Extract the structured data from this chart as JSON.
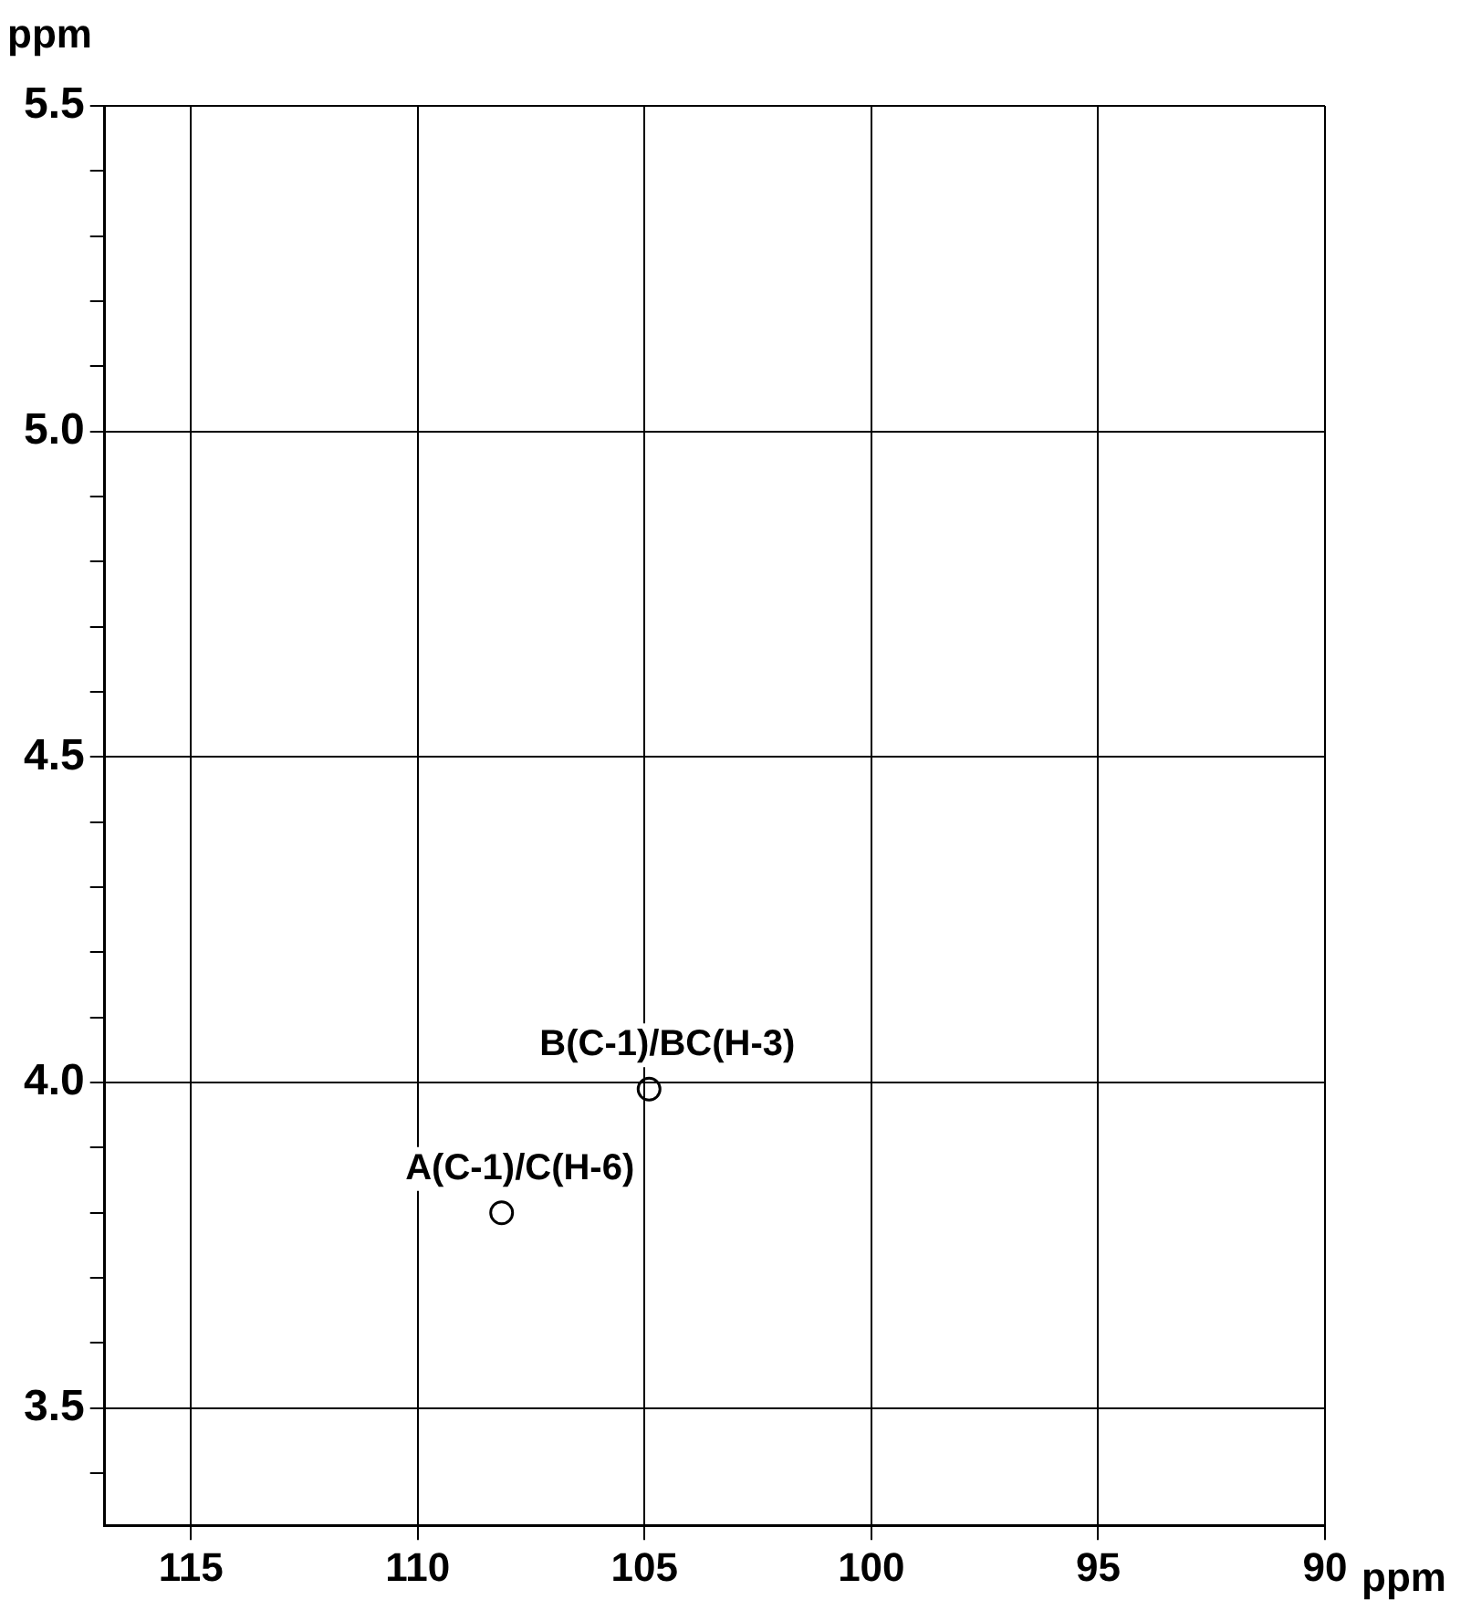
{
  "chart_data": {
    "type": "scatter",
    "xlabel": "ppm",
    "ylabel": "ppm",
    "x": [
      104.9,
      108.15
    ],
    "series": [
      {
        "color": "#000000",
        "values": [
          3.99,
          3.8
        ]
      }
    ],
    "xlim": [
      116.9,
      90
    ],
    "xticks": [
      115,
      110,
      105,
      100,
      95,
      90
    ],
    "ylim": [
      3.32,
      5.5
    ],
    "yticks": [
      {
        "value": 3.4,
        "label": null
      },
      {
        "value": 3.5,
        "label": "3.5"
      },
      {
        "value": 3.6,
        "label": null
      },
      {
        "value": 3.7,
        "label": null
      },
      {
        "value": 3.8,
        "label": null
      },
      {
        "value": 3.9,
        "label": null
      },
      {
        "value": 4,
        "label": "4.0"
      },
      {
        "value": 4.1,
        "label": null
      },
      {
        "value": 4.2,
        "label": null
      },
      {
        "value": 4.3,
        "label": null
      },
      {
        "value": 4.4,
        "label": null
      },
      {
        "value": 4.5,
        "label": "4.5"
      },
      {
        "value": 4.6,
        "label": null
      },
      {
        "value": 4.7,
        "label": null
      },
      {
        "value": 4.8,
        "label": null
      },
      {
        "value": 4.9,
        "label": null
      },
      {
        "value": 5,
        "label": "5.0"
      },
      {
        "value": 5.1,
        "label": null
      },
      {
        "value": 5.2,
        "label": null
      },
      {
        "value": 5.3,
        "label": null
      },
      {
        "value": 5.4,
        "label": null
      },
      {
        "value": 5.5,
        "label": "5.5"
      }
    ],
    "annotations": [
      {
        "text": "B(C-1)/BC(H-3)",
        "x": 104.9,
        "y": 3.99
      },
      {
        "text": "A(C-1)/C(H-6)",
        "x": 108.15,
        "y": 3.8
      }
    ],
    "grid": true,
    "marker": "circle",
    "legend": false
  }
}
